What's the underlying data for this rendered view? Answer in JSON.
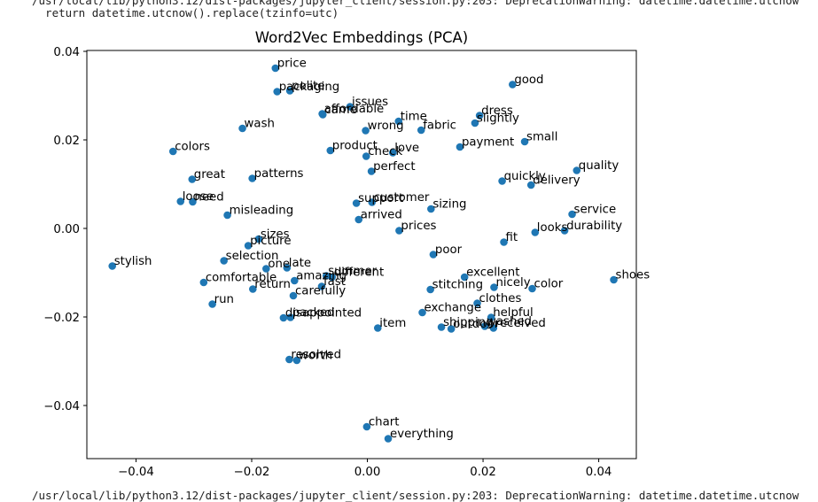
{
  "output_log": {
    "top_lines": [
      "/usr/local/lib/python3.12/dist-packages/jupyter_client/session.py:203: DeprecationWarning: datetime.datetime.utcnow",
      "  return datetime.utcnow().replace(tzinfo=utc)"
    ],
    "bottom_line": "/usr/local/lib/python3.12/dist-packages/jupyter_client/session.py:203: DeprecationWarning: datetime.datetime.utcnow"
  },
  "colors": {
    "point": "#1f77b4",
    "text": "#000000",
    "axis": "#000000"
  },
  "chart_data": {
    "type": "scatter",
    "title": "Word2Vec Embeddings (PCA)",
    "xlabel": "",
    "ylabel": "",
    "xlim": [
      -0.0485,
      0.0465
    ],
    "ylim": [
      -0.052,
      0.0402
    ],
    "xticks": [
      -0.04,
      -0.02,
      0.0,
      0.02,
      0.04
    ],
    "yticks": [
      -0.04,
      -0.02,
      0.0,
      0.02,
      0.04
    ],
    "xtick_labels": [
      "−0.04",
      "−0.02",
      "0.00",
      "0.02",
      "0.04"
    ],
    "ytick_labels": [
      "−0.04",
      "−0.02",
      "0.00",
      "0.02",
      "0.04"
    ],
    "grid": false,
    "points": [
      {
        "label": "price",
        "x": -0.0159,
        "y": 0.0362
      },
      {
        "label": "packaging",
        "x": -0.0156,
        "y": 0.0309
      },
      {
        "label": "polite",
        "x": -0.0134,
        "y": 0.0311
      },
      {
        "label": "good",
        "x": 0.0251,
        "y": 0.0325
      },
      {
        "label": "issues",
        "x": -0.003,
        "y": 0.0275
      },
      {
        "label": "affordable",
        "x": -0.0078,
        "y": 0.0259
      },
      {
        "label": "came",
        "x": -0.0077,
        "y": 0.0257
      },
      {
        "label": "time",
        "x": 0.0054,
        "y": 0.0242
      },
      {
        "label": "wash",
        "x": -0.0216,
        "y": 0.0226
      },
      {
        "label": "wrong",
        "x": -0.0003,
        "y": 0.0221
      },
      {
        "label": "fabric",
        "x": 0.0093,
        "y": 0.0222
      },
      {
        "label": "dress",
        "x": 0.0194,
        "y": 0.0255
      },
      {
        "label": "slightly",
        "x": 0.0186,
        "y": 0.0238
      },
      {
        "label": "small",
        "x": 0.0272,
        "y": 0.0196
      },
      {
        "label": "payment",
        "x": 0.016,
        "y": 0.0184
      },
      {
        "label": "colors",
        "x": -0.0336,
        "y": 0.0174
      },
      {
        "label": "product",
        "x": -0.0064,
        "y": 0.0176
      },
      {
        "label": "check",
        "x": -0.0002,
        "y": 0.0163
      },
      {
        "label": "love",
        "x": 0.0044,
        "y": 0.0171
      },
      {
        "label": "perfect",
        "x": 0.0007,
        "y": 0.0129
      },
      {
        "label": "quality",
        "x": 0.0362,
        "y": 0.0131
      },
      {
        "label": "great",
        "x": -0.0303,
        "y": 0.0111
      },
      {
        "label": "patterns",
        "x": -0.0199,
        "y": 0.0113
      },
      {
        "label": "quickly",
        "x": 0.0233,
        "y": 0.0107
      },
      {
        "label": "delivery",
        "x": 0.0283,
        "y": 0.0098
      },
      {
        "label": "loose",
        "x": -0.0323,
        "y": 0.0061
      },
      {
        "label": "need",
        "x": -0.0302,
        "y": 0.006
      },
      {
        "label": "support",
        "x": -0.0019,
        "y": 0.0057
      },
      {
        "label": "customer",
        "x": 0.0008,
        "y": 0.0059
      },
      {
        "label": "sizing",
        "x": 0.011,
        "y": 0.0044
      },
      {
        "label": "misleading",
        "x": -0.0242,
        "y": 0.003
      },
      {
        "label": "arrived",
        "x": -0.0015,
        "y": 0.002
      },
      {
        "label": "service",
        "x": 0.0354,
        "y": 0.0032
      },
      {
        "label": "prices",
        "x": 0.0055,
        "y": -0.0005
      },
      {
        "label": "looks",
        "x": 0.029,
        "y": -0.0009
      },
      {
        "label": "durability",
        "x": 0.0341,
        "y": -0.0005
      },
      {
        "label": "sizes",
        "x": -0.0188,
        "y": -0.0024
      },
      {
        "label": "picture",
        "x": -0.0206,
        "y": -0.0039
      },
      {
        "label": "fit",
        "x": 0.0236,
        "y": -0.0031
      },
      {
        "label": "poor",
        "x": 0.0114,
        "y": -0.0059
      },
      {
        "label": "stylish",
        "x": -0.0441,
        "y": -0.0085
      },
      {
        "label": "selection",
        "x": -0.0248,
        "y": -0.0073
      },
      {
        "label": "one",
        "x": -0.0175,
        "y": -0.0091
      },
      {
        "label": "late",
        "x": -0.0139,
        "y": -0.0089
      },
      {
        "label": "summer",
        "x": -0.0071,
        "y": -0.0107
      },
      {
        "label": "different",
        "x": -0.0061,
        "y": -0.011
      },
      {
        "label": "amazing",
        "x": -0.0126,
        "y": -0.0118
      },
      {
        "label": "fast",
        "x": -0.0079,
        "y": -0.0131
      },
      {
        "label": "comfortable",
        "x": -0.0283,
        "y": -0.0122
      },
      {
        "label": "return",
        "x": -0.0198,
        "y": -0.0137
      },
      {
        "label": "carefully",
        "x": -0.0128,
        "y": -0.0152
      },
      {
        "label": "excellent",
        "x": 0.0168,
        "y": -0.011
      },
      {
        "label": "stitching",
        "x": 0.0109,
        "y": -0.0138
      },
      {
        "label": "nicely",
        "x": 0.0219,
        "y": -0.0133
      },
      {
        "label": "color",
        "x": 0.0285,
        "y": -0.0136
      },
      {
        "label": "shoes",
        "x": 0.0426,
        "y": -0.0116
      },
      {
        "label": "run",
        "x": -0.0268,
        "y": -0.0171
      },
      {
        "label": "clothes",
        "x": 0.019,
        "y": -0.0169
      },
      {
        "label": "exchange",
        "x": 0.0095,
        "y": -0.019
      },
      {
        "label": "disappointed",
        "x": -0.0145,
        "y": -0.0202
      },
      {
        "label": "packed",
        "x": -0.0133,
        "y": -0.0201
      },
      {
        "label": "helpful",
        "x": 0.0214,
        "y": -0.0201
      },
      {
        "label": "item",
        "x": 0.0018,
        "y": -0.0225
      },
      {
        "label": "shipping",
        "x": 0.0128,
        "y": -0.0223
      },
      {
        "label": "outdoor",
        "x": 0.0145,
        "y": -0.0227
      },
      {
        "label": "washed",
        "x": 0.0203,
        "y": -0.0221
      },
      {
        "label": "received",
        "x": 0.0218,
        "y": -0.0225
      },
      {
        "label": "resolved",
        "x": -0.0135,
        "y": -0.0296
      },
      {
        "label": "worth",
        "x": -0.0122,
        "y": -0.0298
      },
      {
        "label": "chart",
        "x": -0.0001,
        "y": -0.0448
      },
      {
        "label": "everything",
        "x": 0.0036,
        "y": -0.0475
      }
    ]
  }
}
